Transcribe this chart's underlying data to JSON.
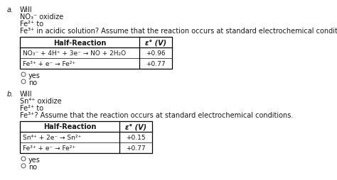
{
  "background_color": "#ffffff",
  "fig_width": 4.74,
  "fig_height": 2.55,
  "dpi": 100,
  "text_color": "#1a1a1a",
  "section_a": {
    "label": "a.",
    "line1": "Will",
    "line2": "NO₃⁻ oxidize",
    "line3": "Fe²⁺ to",
    "line4": "Fe³⁺ in acidic solution? Assume that the reaction occurs at standard electrochemical conditions.",
    "col1_header": "Half-Reaction",
    "col2_header": "ε° (V)",
    "row1_col1": "NO₃⁻ + 4H⁺ + 3e⁻ → NO + 2H₂O   +0.96",
    "row2_col1": "Fe³⁺ + e⁻ → Fe²⁺",
    "row1_val": "+0.96",
    "row2_val": "+0.77",
    "opt1": "yes",
    "opt2": "no"
  },
  "section_b": {
    "label": "b.",
    "line1": "Will",
    "line2": "Sn⁴⁺ oxidize",
    "line3": "Fe²⁺ to",
    "line4": "Fe³⁺? Assume that the reaction occurs at standard electrochemical conditions.",
    "col1_header": "Half-Reaction",
    "col2_header": "ε° (V)",
    "row1_col1": "Sn⁴⁺ + 2e⁻ → Sn²⁺",
    "row2_col1": "Fe³⁺ + e⁻ → Fe²⁺",
    "row1_val": "+0.15",
    "row2_val": "+0.77",
    "opt1": "yes",
    "opt2": "no"
  },
  "fs": 7.0,
  "fs_small": 6.5
}
